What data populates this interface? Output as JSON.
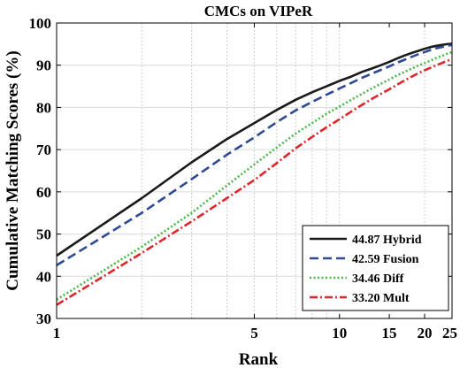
{
  "chart_data": {
    "type": "line",
    "title": "CMCs on VIPeR",
    "xlabel": "Rank",
    "ylabel": "Cumulative Matching Scores (%)",
    "x_scale": "log",
    "xlim": [
      1,
      25
    ],
    "ylim": [
      30,
      100
    ],
    "x_ticks": [
      1,
      5,
      10,
      15,
      20,
      25
    ],
    "x_gridlines": [
      1,
      2,
      3,
      4,
      5,
      6,
      7,
      8,
      9,
      10,
      20
    ],
    "y_ticks": [
      30,
      40,
      50,
      60,
      70,
      80,
      90,
      100
    ],
    "grid": true,
    "legend_position": "bottom-right",
    "x": [
      1,
      2,
      3,
      4,
      5,
      6,
      7,
      8,
      9,
      10,
      11,
      12,
      13,
      14,
      15,
      16,
      17,
      18,
      19,
      20,
      21,
      22,
      23,
      24,
      25
    ],
    "series": [
      {
        "name": "44.87 Hybrid",
        "color": "#1a1a1a",
        "dash": "solid",
        "values": [
          44.87,
          58.5,
          67,
          72.5,
          76.3,
          79.4,
          81.8,
          83.6,
          85.0,
          86.3,
          87.3,
          88.4,
          89.2,
          90.0,
          90.8,
          91.6,
          92.3,
          92.9,
          93.4,
          93.9,
          94.3,
          94.6,
          94.8,
          95.0,
          95.1
        ]
      },
      {
        "name": "42.59 Fusion",
        "color": "#2e4a94",
        "dash": "dashed",
        "values": [
          42.59,
          55.0,
          63.0,
          68.8,
          72.9,
          76.5,
          79.3,
          81.3,
          83.0,
          84.5,
          85.8,
          87.0,
          88.0,
          88.9,
          89.7,
          90.6,
          91.3,
          92.0,
          92.6,
          93.1,
          93.6,
          94.0,
          94.3,
          94.6,
          94.8
        ]
      },
      {
        "name": "34.46 Diff",
        "color": "#4cb84c",
        "dash": "dotted",
        "values": [
          34.46,
          47.0,
          55.0,
          61.5,
          66.5,
          70.5,
          73.8,
          76.3,
          78.5,
          80.2,
          81.8,
          83.2,
          84.5,
          85.6,
          86.6,
          87.6,
          88.4,
          89.2,
          89.9,
          90.5,
          91.1,
          91.7,
          92.2,
          92.7,
          93.1
        ]
      },
      {
        "name": "33.20 Mult",
        "color": "#e0252b",
        "dash": "dashdot",
        "values": [
          33.2,
          45.5,
          53.0,
          58.5,
          62.8,
          66.8,
          70.3,
          73.0,
          75.3,
          77.2,
          79.0,
          80.6,
          82.0,
          83.2,
          84.3,
          85.4,
          86.4,
          87.3,
          88.1,
          88.8,
          89.4,
          90.0,
          90.5,
          91.0,
          91.4
        ]
      }
    ]
  }
}
